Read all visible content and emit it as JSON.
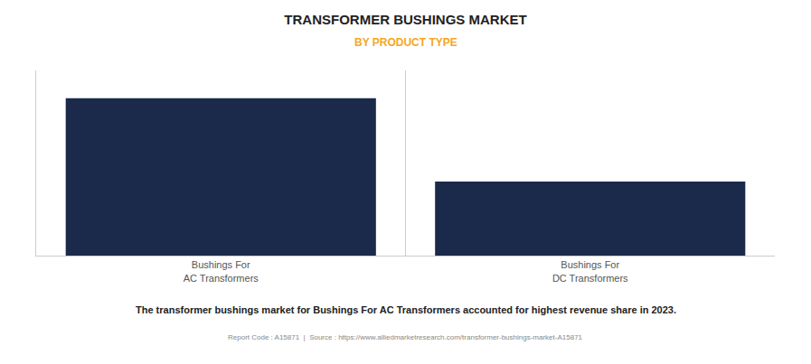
{
  "chart_data": {
    "type": "bar",
    "title": "TRANSFORMER BUSHINGS MARKET",
    "subtitle": "BY PRODUCT TYPE",
    "categories": [
      "Bushings For\nAC Transformers",
      "Bushings For\nDC Transformers"
    ],
    "values": [
      0.85,
      0.4
    ],
    "color": "#1b2a4a",
    "ylim": [
      0,
      1.0
    ],
    "grid": false,
    "tick_labels": "x",
    "annotations": [
      "The transformer bushings market for Bushings For AC Transformers accounted for highest revenue share in 2023.",
      "Report Code : A15871  |  Source : https://www.alliedmarketresearch.com/transformer-bushings-market-A15871"
    ]
  }
}
